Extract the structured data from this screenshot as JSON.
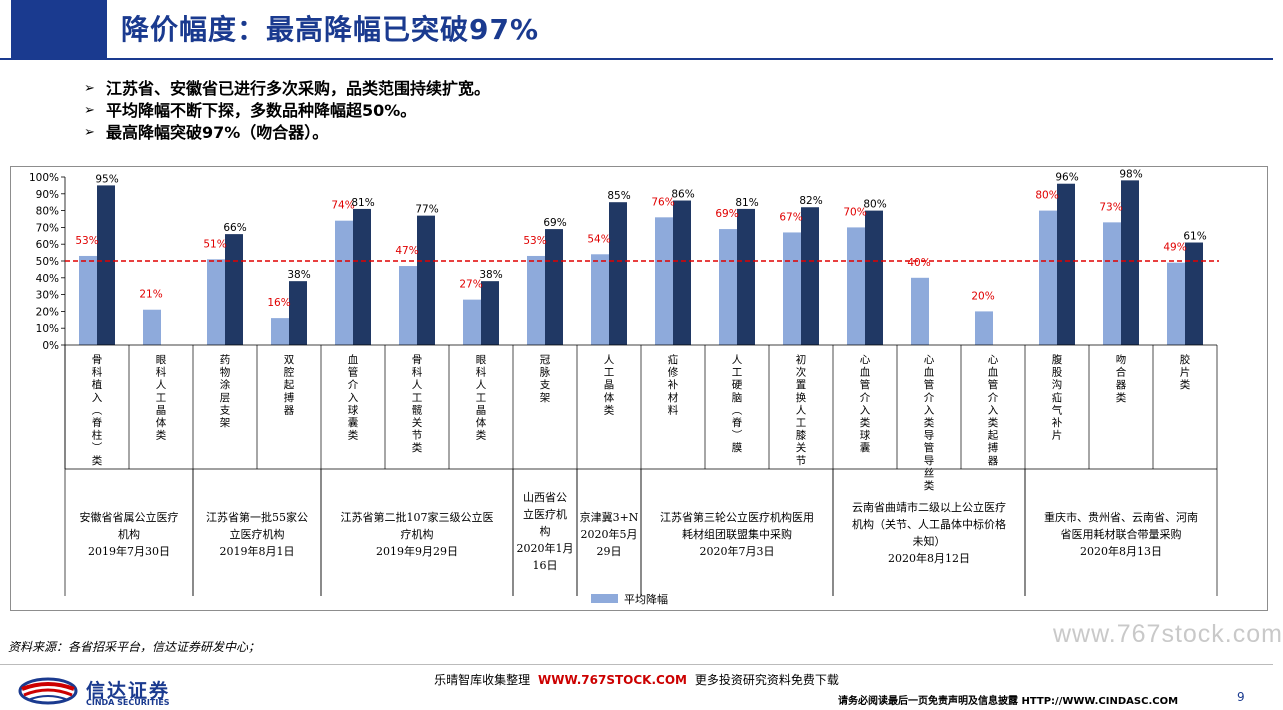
{
  "header": {
    "title": "降价幅度：最高降幅已突破97%"
  },
  "bullets": [
    "江苏省、安徽省已进行多次采购，品类范围持续扩宽。",
    "平均降幅不断下探，多数品种降幅超50%。",
    "最高降幅突破97%（吻合器）。"
  ],
  "colors": {
    "title": "#1a3a8f",
    "avg_bar": "#8eaadb",
    "max_bar": "#203864",
    "avg_label": "#e00000",
    "ref_line": "#e00000"
  },
  "chart_data": {
    "type": "bar",
    "y_ticks": [
      "100%",
      "90%",
      "80%",
      "70%",
      "60%",
      "50%",
      "40%",
      "30%",
      "20%",
      "10%",
      "0%"
    ],
    "ylim": [
      0,
      100
    ],
    "reference_line": 50,
    "categories": [
      "骨科植入(脊柱)类",
      "眼科人工晶体类",
      "药物涂层支架",
      "双腔起搏器",
      "血管介入球囊类",
      "骨科人工髋关节类",
      "眼科人工晶体类",
      "冠脉支架",
      "人工晶体类",
      "疝修补材料",
      "人工硬脑(脊)膜",
      "初次置换人工膝关节",
      "心血管介入类球囊",
      "心血管介入类导管导丝类",
      "心血管介入类起搏器",
      "腹股沟疝气补片",
      "吻合器类",
      "胶片类"
    ],
    "series": [
      {
        "name": "平均降幅",
        "values": [
          53,
          21,
          51,
          16,
          74,
          47,
          27,
          53,
          54,
          76,
          69,
          67,
          70,
          40,
          20,
          80,
          73,
          49
        ],
        "labels": [
          "53%",
          "21%",
          "51%",
          "16%",
          "74%",
          "47%",
          "27%",
          "53%",
          "54%",
          "76%",
          "69%",
          "67%",
          "70%",
          "40%",
          "20%",
          "80%",
          "73%",
          "49%"
        ]
      },
      {
        "name": "",
        "values": [
          95,
          null,
          66,
          38,
          81,
          77,
          38,
          69,
          85,
          86,
          81,
          82,
          80,
          null,
          null,
          96,
          98,
          61
        ],
        "labels": [
          "95%",
          "",
          "66%",
          "38%",
          "81%",
          "77%",
          "38%",
          "69%",
          "85%",
          "86%",
          "81%",
          "82%",
          "80%",
          "",
          "",
          "96%",
          "98%",
          "61%"
        ]
      }
    ],
    "groups": [
      {
        "start": 0,
        "end": 2,
        "lines": [
          "安徽省省属公立医疗",
          "机构",
          "2019年7月30日"
        ]
      },
      {
        "start": 2,
        "end": 4,
        "lines": [
          "江苏省第一批55家公",
          "立医疗机构",
          "2019年8月1日"
        ]
      },
      {
        "start": 4,
        "end": 7,
        "lines": [
          "江苏省第二批107家三级公立医",
          "疗机构",
          "2019年9月29日"
        ]
      },
      {
        "start": 7,
        "end": 8,
        "lines": [
          "山西省公",
          "立医疗机",
          "构",
          "2020年1月",
          "16日"
        ]
      },
      {
        "start": 8,
        "end": 9,
        "lines": [
          "京津冀3+N",
          "2020年5月",
          "29日"
        ]
      },
      {
        "start": 9,
        "end": 12,
        "lines": [
          "江苏省第三轮公立医疗机构医用",
          "耗材组团联盟集中采购",
          "2020年7月3日"
        ]
      },
      {
        "start": 12,
        "end": 15,
        "lines": [
          "云南省曲靖市二级以上公立医疗",
          "机构（关节、人工晶体中标价格",
          "未知）",
          "2020年8月12日"
        ]
      },
      {
        "start": 15,
        "end": 18,
        "lines": [
          "重庆市、贵州省、云南省、河南",
          "省医用耗材联合带量采购",
          "2020年8月13日"
        ]
      }
    ],
    "legend": "bottom"
  },
  "footer": {
    "source": "资料来源：各省招采平台，信达证券研发中心；",
    "watermark": "www.767stock.com",
    "promo_left": "乐晴智库收集整理",
    "promo_url": "WWW.767STOCK.COM",
    "promo_right": "更多投资研究资料免费下载",
    "disclaimer": "请务必阅读最后一页免责声明及信息披露   HTTP://WWW.CINDASC.COM",
    "page": "9",
    "logo_cn": "信达证券",
    "logo_en": "CINDA SECURITIES"
  }
}
